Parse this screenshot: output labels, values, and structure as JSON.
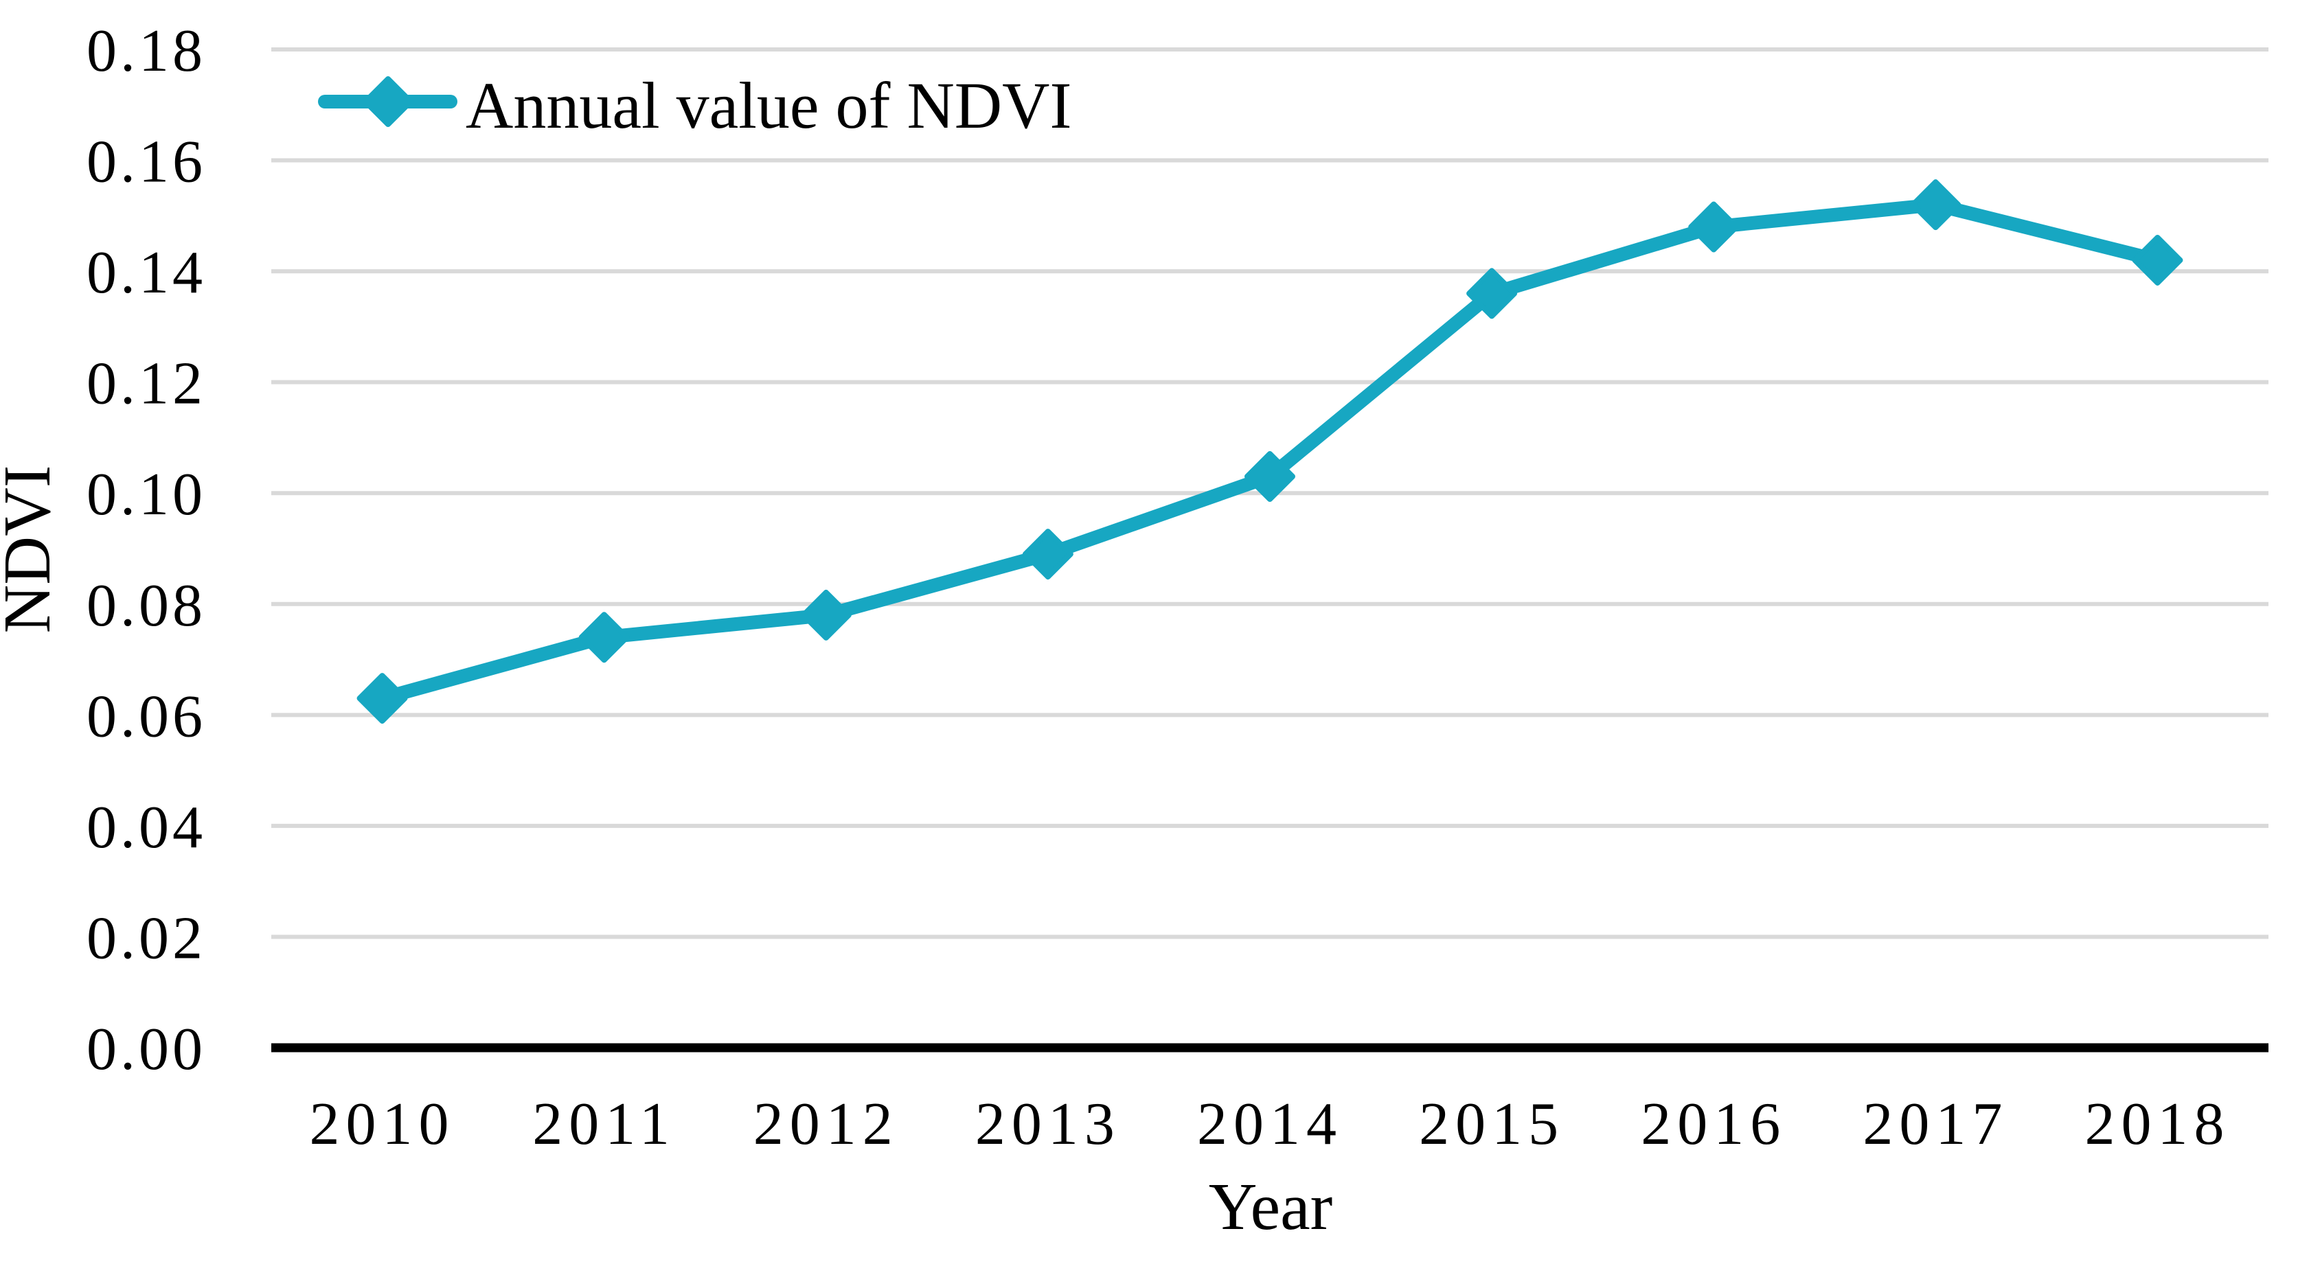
{
  "chart_data": {
    "type": "line",
    "title": "",
    "categories": [
      "2010",
      "2011",
      "2012",
      "2013",
      "2014",
      "2015",
      "2016",
      "2017",
      "2018"
    ],
    "series": [
      {
        "name": "Annual value of NDVI",
        "values": [
          0.063,
          0.074,
          0.078,
          0.089,
          0.103,
          0.136,
          0.148,
          0.152,
          0.142
        ],
        "color": "#17A7C2",
        "marker": "diamond",
        "line_width": 20
      }
    ],
    "xlabel": "Year",
    "ylabel": "NDVI",
    "ylim": [
      0.0,
      0.18
    ],
    "ytick_step": 0.02,
    "ytick_labels": [
      "0.00",
      "0.02",
      "0.04",
      "0.06",
      "0.08",
      "0.10",
      "0.12",
      "0.14",
      "0.16",
      "0.18"
    ],
    "grid": true,
    "gridline_color": "#D9D9D9",
    "axis_line_color": "#000000",
    "text_color": "#000000",
    "legend": {
      "label": "Annual value of NDVI",
      "position": "top-left-inside"
    }
  }
}
